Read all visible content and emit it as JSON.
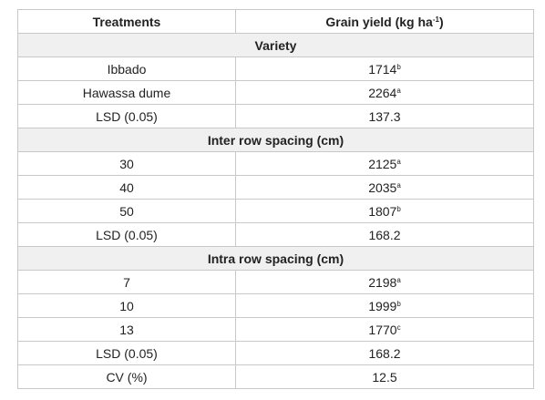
{
  "table": {
    "header": [
      {
        "text": "Treatments"
      },
      {
        "text": "Grain yield (kg ha",
        "sup": "-1",
        "tail": ")"
      }
    ],
    "sections": [
      {
        "title": "Variety",
        "rows": [
          {
            "treatment": "Ibbado",
            "value": "1714",
            "sup": "b"
          },
          {
            "treatment": "Hawassa dume",
            "value": "2264",
            "sup": "a"
          },
          {
            "treatment": "LSD (0.05)",
            "value": "137.3"
          }
        ]
      },
      {
        "title": "Inter row spacing (cm)",
        "rows": [
          {
            "treatment": "30",
            "value": "2125",
            "sup": "a"
          },
          {
            "treatment": "40",
            "value": "2035",
            "sup": "a"
          },
          {
            "treatment": "50",
            "value": "1807",
            "sup": "b"
          },
          {
            "treatment": "LSD (0.05)",
            "value": "168.2"
          }
        ]
      },
      {
        "title": "Intra row spacing (cm)",
        "rows": [
          {
            "treatment": "7",
            "value": "2198",
            "sup": "a"
          },
          {
            "treatment": "10",
            "value": "1999",
            "sup": "b"
          },
          {
            "treatment": "13",
            "value": "1770",
            "sup": "c"
          },
          {
            "treatment": "LSD (0.05)",
            "value": "168.2"
          },
          {
            "treatment": "CV (%)",
            "value": "12.5"
          }
        ]
      }
    ]
  }
}
